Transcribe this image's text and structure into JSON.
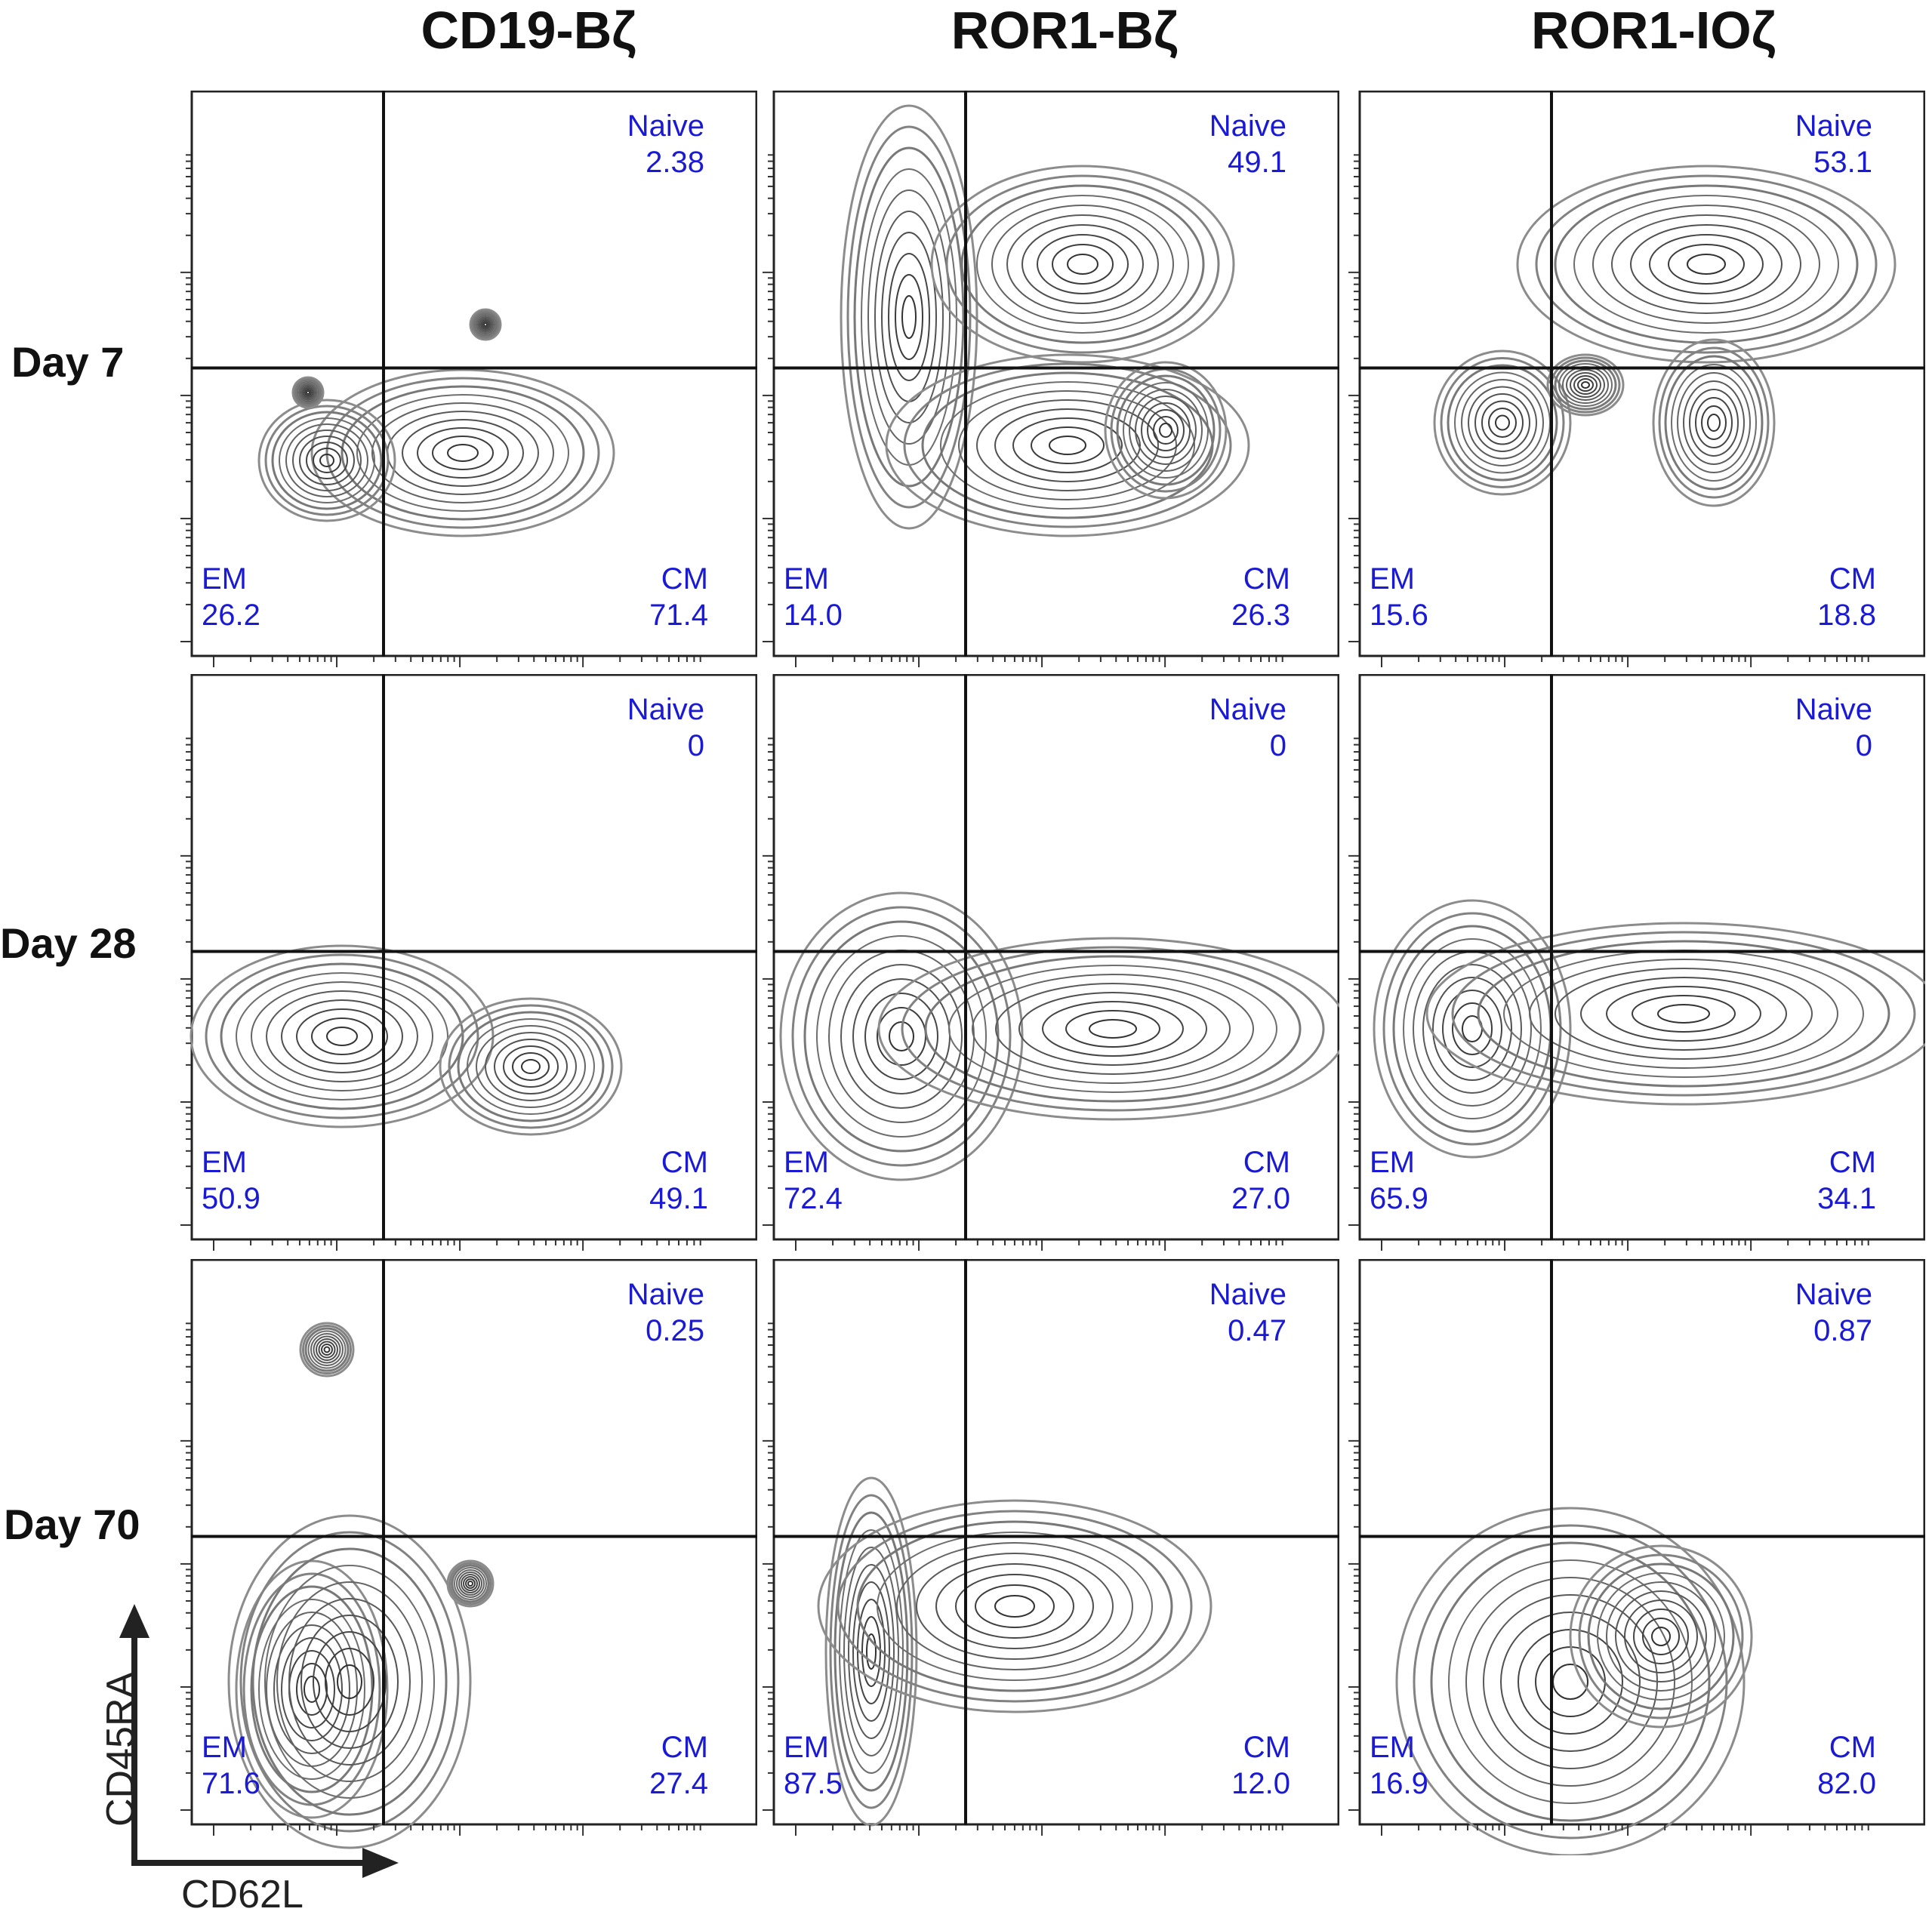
{
  "figure": {
    "columns": [
      "CD19-Bζ",
      "ROR1-Bζ",
      "ROR1-IOζ"
    ],
    "rows": [
      "Day 7",
      "Day 28",
      "Day 70"
    ],
    "x_axis_label": "CD62L",
    "y_axis_label": "CD45RA",
    "quadrant_names": {
      "naive": "Naive",
      "em": "EM",
      "cm": "CM"
    }
  },
  "chart_data": {
    "type": "contour",
    "x": "CD62L",
    "y": "CD45RA",
    "quadrants": [
      "Naive",
      "EM",
      "CM"
    ],
    "panels": [
      {
        "row": "Day 7",
        "column": "CD19-Bζ",
        "naive": "2.38",
        "em": "26.2",
        "cm": "71.4"
      },
      {
        "row": "Day 7",
        "column": "ROR1-Bζ",
        "naive": "49.1",
        "em": "14.0",
        "cm": "26.3"
      },
      {
        "row": "Day 7",
        "column": "ROR1-IOζ",
        "naive": "53.1",
        "em": "15.6",
        "cm": "18.8"
      },
      {
        "row": "Day 28",
        "column": "CD19-Bζ",
        "naive": "0",
        "em": "50.9",
        "cm": "49.1"
      },
      {
        "row": "Day 28",
        "column": "ROR1-Bζ",
        "naive": "0",
        "em": "72.4",
        "cm": "27.0"
      },
      {
        "row": "Day 28",
        "column": "ROR1-IOζ",
        "naive": "0",
        "em": "65.9",
        "cm": "34.1"
      },
      {
        "row": "Day 70",
        "column": "CD19-Bζ",
        "naive": "0.25",
        "em": "71.6",
        "cm": "27.4"
      },
      {
        "row": "Day 70",
        "column": "ROR1-Bζ",
        "naive": "0.47",
        "em": "87.5",
        "cm": "12.0"
      },
      {
        "row": "Day 70",
        "column": "ROR1-IOζ",
        "naive": "0.87",
        "em": "16.9",
        "cm": "82.0"
      }
    ]
  }
}
